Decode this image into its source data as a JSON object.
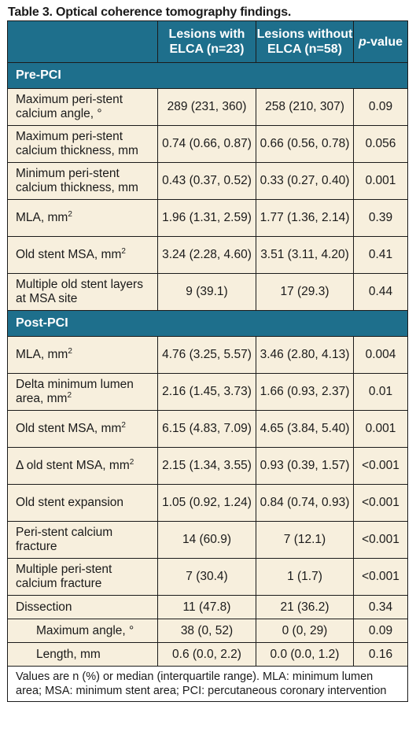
{
  "title": "Table 3. Optical coherence tomography findings.",
  "headers": {
    "col1": "Lesions with ELCA (n=23)",
    "col2": "Lesions without ELCA (n=58)",
    "p_italic": "p",
    "p_rest": "-value"
  },
  "sections": [
    {
      "name": "Pre-PCI",
      "rows": [
        {
          "label": "Maximum peri-stent calcium angle, °",
          "sup": "",
          "a": "289 (231, 360)",
          "b": "258 (210, 307)",
          "p": "0.09",
          "indent": false
        },
        {
          "label": "Maximum peri-stent calcium thickness, mm",
          "sup": "",
          "a": "0.74 (0.66, 0.87)",
          "b": "0.66 (0.56, 0.78)",
          "p": "0.056",
          "indent": false
        },
        {
          "label": "Minimum peri-stent calcium thickness, mm",
          "sup": "",
          "a": "0.43 (0.37, 0.52)",
          "b": "0.33 (0.27, 0.40)",
          "p": "0.001",
          "indent": false
        },
        {
          "label": "MLA, mm",
          "sup": "2",
          "a": "1.96 (1.31, 2.59)",
          "b": "1.77 (1.36, 2.14)",
          "p": "0.39",
          "indent": false
        },
        {
          "label": "Old stent MSA, mm",
          "sup": "2",
          "a": "3.24 (2.28, 4.60)",
          "b": "3.51 (3.11, 4.20)",
          "p": "0.41",
          "indent": false
        },
        {
          "label": "Multiple old stent layers at MSA site",
          "sup": "",
          "a": "9 (39.1)",
          "b": "17 (29.3)",
          "p": "0.44",
          "indent": false
        }
      ]
    },
    {
      "name": "Post-PCI",
      "rows": [
        {
          "label": "MLA, mm",
          "sup": "2",
          "a": "4.76 (3.25, 5.57)",
          "b": "3.46 (2.80, 4.13)",
          "p": "0.004",
          "indent": false
        },
        {
          "label": "Delta minimum lumen area, mm",
          "sup": "2",
          "a": "2.16 (1.45, 3.73)",
          "b": "1.66 (0.93, 2.37)",
          "p": "0.01",
          "indent": false
        },
        {
          "label": "Old stent MSA, mm",
          "sup": "2",
          "a": "6.15 (4.83, 7.09)",
          "b": "4.65 (3.84, 5.40)",
          "p": "0.001",
          "indent": false
        },
        {
          "label": "Δ old stent MSA, mm",
          "sup": "2",
          "a": "2.15 (1.34, 3.55)",
          "b": "0.93 (0.39, 1.57)",
          "p": "<0.001",
          "indent": false
        },
        {
          "label": "Old stent expansion",
          "sup": "",
          "a": "1.05 (0.92, 1.24)",
          "b": "0.84 (0.74, 0.93)",
          "p": "<0.001",
          "indent": false
        },
        {
          "label": "Peri-stent calcium fracture",
          "sup": "",
          "a": "14 (60.9)",
          "b": "7 (12.1)",
          "p": "<0.001",
          "indent": false
        },
        {
          "label": "Multiple peri-stent calcium fracture",
          "sup": "",
          "a": "7 (30.4)",
          "b": "1 (1.7)",
          "p": "<0.001",
          "indent": false
        },
        {
          "label": "Dissection",
          "sup": "",
          "a": "11 (47.8)",
          "b": "21 (36.2)",
          "p": "0.34",
          "indent": false
        },
        {
          "label": "Maximum angle, °",
          "sup": "",
          "a": "38 (0, 52)",
          "b": "0 (0, 29)",
          "p": "0.09",
          "indent": true
        },
        {
          "label": "Length, mm",
          "sup": "",
          "a": "0.6 (0.0, 2.2)",
          "b": "0.0 (0.0, 1.2)",
          "p": "0.16",
          "indent": true
        }
      ]
    }
  ],
  "footnote": "Values are n (%) or median (interquartile range). MLA: minimum lumen area; MSA: minimum stent area; PCI: percutaneous coronary intervention"
}
